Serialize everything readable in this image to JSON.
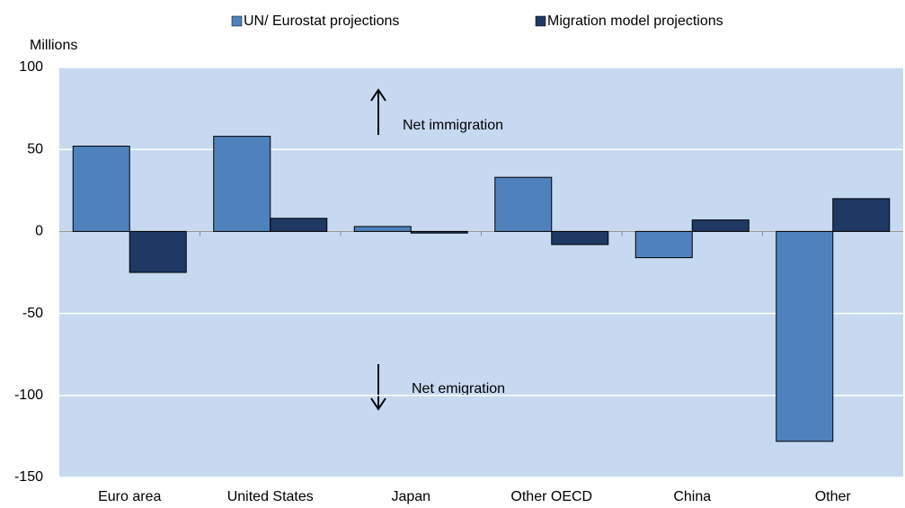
{
  "chart_data": {
    "type": "bar",
    "y_label": "Millions",
    "categories": [
      "Euro area",
      "United States",
      "Japan",
      "Other OECD",
      "China",
      "Other"
    ],
    "series": [
      {
        "name": "UN/ Eurostat projections",
        "color": "#4f81bd",
        "values": [
          52,
          58,
          3,
          33,
          -16,
          -128
        ]
      },
      {
        "name": "Migration model projections",
        "color": "#1f3864",
        "values": [
          -25,
          8,
          -1,
          -8,
          7,
          20
        ]
      }
    ],
    "ylim": [
      -150,
      100
    ],
    "yticks": [
      -150,
      -100,
      -50,
      0,
      50,
      100
    ],
    "grid": true,
    "annotations": [
      "Net immigration",
      "Net emigration"
    ]
  }
}
